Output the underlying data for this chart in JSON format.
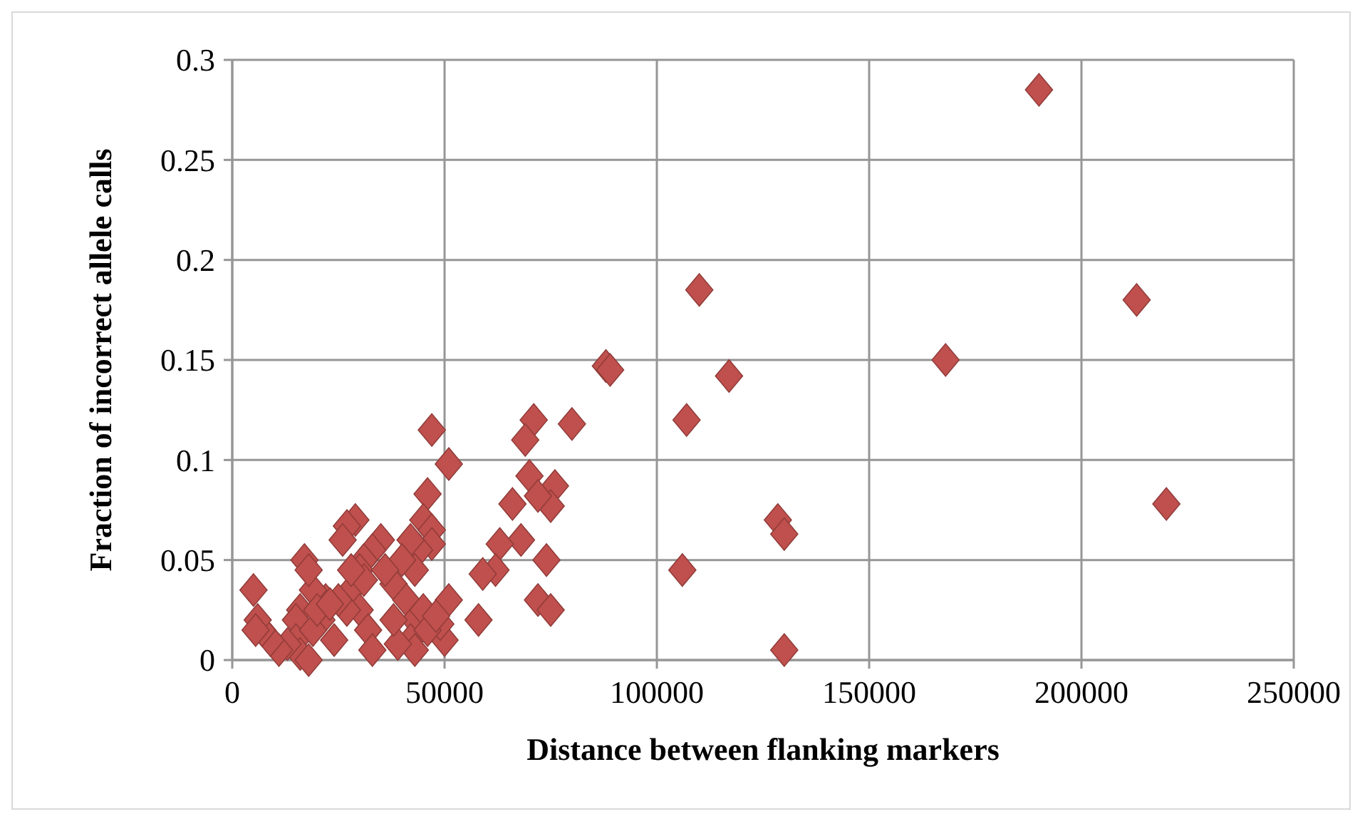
{
  "chart_data": {
    "type": "scatter",
    "xlabel": "Distance between flanking markers",
    "ylabel": "Fraction of incorrect allele calls",
    "xlim": [
      0,
      250000
    ],
    "xticks": [
      0,
      50000,
      100000,
      150000,
      200000,
      250000
    ],
    "ylim": [
      0,
      0.3
    ],
    "yticks": [
      0,
      0.05,
      0.1,
      0.15,
      0.2,
      0.25,
      0.3
    ],
    "grid": true,
    "marker": "diamond",
    "series": [
      {
        "color": "#c0504d",
        "x": [
          190000,
          213000,
          168000,
          220000,
          110000,
          117000,
          107000,
          106000,
          128500,
          130000,
          130000,
          88000,
          89000,
          80000,
          71000,
          69000,
          47000,
          51000,
          76000,
          75000,
          70000,
          72000,
          66000,
          68000,
          63000,
          62000,
          59000,
          74000,
          72000,
          75000,
          58000,
          51000,
          50000,
          49000,
          46000,
          45000,
          47000,
          47000,
          44000,
          42000,
          43000,
          40000,
          38000,
          41000,
          43000,
          45000,
          42000,
          43000,
          46000,
          39000,
          35000,
          33000,
          31000,
          30000,
          29000,
          27000,
          26000,
          28000,
          31000,
          30000,
          32000,
          33000,
          27000,
          25000,
          24000,
          22000,
          21000,
          19000,
          17000,
          18000,
          16000,
          15000,
          15000,
          16000,
          18000,
          19000,
          13000,
          11000,
          9000,
          7000,
          6000,
          5000,
          5500,
          20000,
          36000,
          38000,
          48000,
          28000,
          23000
        ],
        "values": [
          0.285,
          0.18,
          0.15,
          0.078,
          0.185,
          0.142,
          0.12,
          0.045,
          0.07,
          0.063,
          0.005,
          0.147,
          0.145,
          0.118,
          0.12,
          0.11,
          0.115,
          0.098,
          0.087,
          0.077,
          0.092,
          0.082,
          0.078,
          0.06,
          0.058,
          0.045,
          0.043,
          0.05,
          0.03,
          0.025,
          0.02,
          0.03,
          0.01,
          0.018,
          0.083,
          0.07,
          0.065,
          0.058,
          0.055,
          0.06,
          0.045,
          0.05,
          0.038,
          0.03,
          0.02,
          0.025,
          0.01,
          0.005,
          0.015,
          0.008,
          0.06,
          0.055,
          0.05,
          0.045,
          0.07,
          0.067,
          0.06,
          0.035,
          0.04,
          0.025,
          0.015,
          0.005,
          0.025,
          0.03,
          0.01,
          0.03,
          0.02,
          0.035,
          0.05,
          0.045,
          0.025,
          0.02,
          0.01,
          0.003,
          0,
          0.015,
          0.008,
          0.005,
          0.01,
          0.015,
          0.02,
          0.035,
          0.015,
          0.025,
          0.045,
          0.02,
          0.022,
          0.045,
          0.028
        ]
      }
    ]
  }
}
